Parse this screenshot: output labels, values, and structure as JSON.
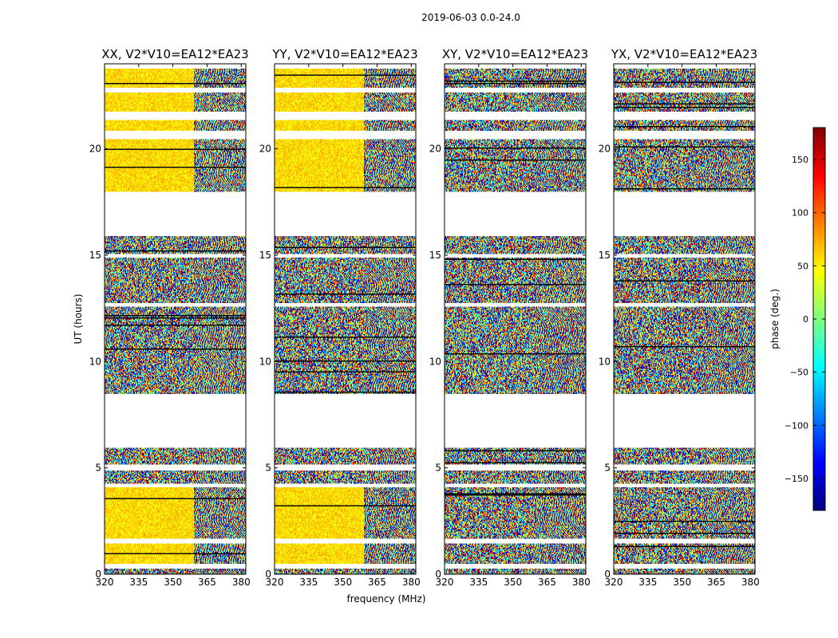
{
  "figure": {
    "suptitle": "2019-06-03 0.0-24.0",
    "xlabel": "frequency (MHz)",
    "ylabel": "UT (hours)",
    "colorbar_label": "phase (deg.)",
    "colorbar_ticks": [
      150,
      100,
      50,
      0,
      -50,
      -100,
      -150
    ],
    "colorbar_tick_labels": [
      "150",
      "100",
      "50",
      "0",
      "−50",
      "−100",
      "−150"
    ],
    "colorbar_range": [
      -180,
      180
    ],
    "colormap": "jet",
    "colormap_stops": [
      "#00007f",
      "#0000ff",
      "#007fff",
      "#00ffff",
      "#7fff7f",
      "#ffff00",
      "#ff7f00",
      "#ff0000",
      "#7f0000"
    ],
    "colors": {
      "frame": "#000000",
      "background": "#ffffff",
      "line": "#000000"
    }
  },
  "chart_data": [
    {
      "type": "heatmap",
      "title": "XX, V2*V10=EA12*EA23",
      "pol": "XX",
      "xlim": [
        320,
        382
      ],
      "ylim": [
        0,
        24
      ],
      "x_ticks": [
        320,
        335,
        350,
        365,
        380
      ],
      "y_ticks": [
        0,
        5,
        10,
        15,
        20
      ],
      "coherent_band": [
        {
          "t0": 0.4,
          "t1": 4.1
        },
        {
          "t0": 18.0,
          "t1": 23.8
        }
      ],
      "fringe_start_mhz": 359,
      "data_gaps_hours": [
        [
          0.3,
          0.5
        ],
        [
          1.5,
          1.7
        ],
        [
          4.1,
          4.3
        ],
        [
          4.9,
          5.2
        ],
        [
          6.0,
          8.5
        ],
        [
          12.6,
          12.8
        ],
        [
          14.9,
          15.1
        ],
        [
          15.9,
          18.0
        ],
        [
          20.5,
          20.9
        ],
        [
          21.4,
          21.8
        ],
        [
          22.7,
          22.9
        ],
        [
          23.8,
          24.0
        ]
      ]
    },
    {
      "type": "heatmap",
      "title": "YY, V2*V10=EA12*EA23",
      "pol": "YY",
      "xlim": [
        320,
        382
      ],
      "ylim": [
        0,
        24
      ],
      "x_ticks": [
        320,
        335,
        350,
        365,
        380
      ],
      "y_ticks": [
        0,
        5,
        10,
        15,
        20
      ],
      "coherent_band": [
        {
          "t0": 0.4,
          "t1": 4.1
        },
        {
          "t0": 18.0,
          "t1": 23.8
        }
      ],
      "fringe_start_mhz": 359,
      "data_gaps_hours": [
        [
          0.3,
          0.5
        ],
        [
          1.5,
          1.7
        ],
        [
          4.1,
          4.3
        ],
        [
          4.9,
          5.2
        ],
        [
          6.0,
          8.5
        ],
        [
          12.6,
          12.8
        ],
        [
          14.9,
          15.1
        ],
        [
          15.9,
          18.0
        ],
        [
          20.5,
          20.9
        ],
        [
          21.4,
          21.8
        ],
        [
          22.7,
          22.9
        ],
        [
          23.8,
          24.0
        ]
      ]
    },
    {
      "type": "heatmap",
      "title": "XY, V2*V10=EA12*EA23",
      "pol": "XY",
      "xlim": [
        320,
        382
      ],
      "ylim": [
        0,
        24
      ],
      "x_ticks": [
        320,
        335,
        350,
        365,
        380
      ],
      "y_ticks": [
        0,
        5,
        10,
        15,
        20
      ],
      "coherent_band": [],
      "fringe_start_mhz": 359,
      "data_gaps_hours": [
        [
          0.3,
          0.5
        ],
        [
          1.5,
          1.7
        ],
        [
          4.1,
          4.3
        ],
        [
          4.9,
          5.2
        ],
        [
          6.0,
          8.5
        ],
        [
          12.6,
          12.8
        ],
        [
          14.9,
          15.1
        ],
        [
          15.9,
          18.0
        ],
        [
          20.5,
          20.9
        ],
        [
          21.4,
          21.8
        ],
        [
          22.7,
          22.9
        ],
        [
          23.8,
          24.0
        ]
      ]
    },
    {
      "type": "heatmap",
      "title": "YX, V2*V10=EA12*EA23",
      "pol": "YX",
      "xlim": [
        320,
        382
      ],
      "ylim": [
        0,
        24
      ],
      "x_ticks": [
        320,
        335,
        350,
        365,
        380
      ],
      "y_ticks": [
        0,
        5,
        10,
        15,
        20
      ],
      "coherent_band": [],
      "fringe_start_mhz": 359,
      "data_gaps_hours": [
        [
          0.3,
          0.5
        ],
        [
          1.5,
          1.7
        ],
        [
          4.1,
          4.3
        ],
        [
          4.9,
          5.2
        ],
        [
          6.0,
          8.5
        ],
        [
          12.6,
          12.8
        ],
        [
          14.9,
          15.1
        ],
        [
          15.9,
          18.0
        ],
        [
          20.5,
          20.9
        ],
        [
          21.4,
          21.8
        ],
        [
          22.7,
          22.9
        ],
        [
          23.8,
          24.0
        ]
      ]
    }
  ]
}
